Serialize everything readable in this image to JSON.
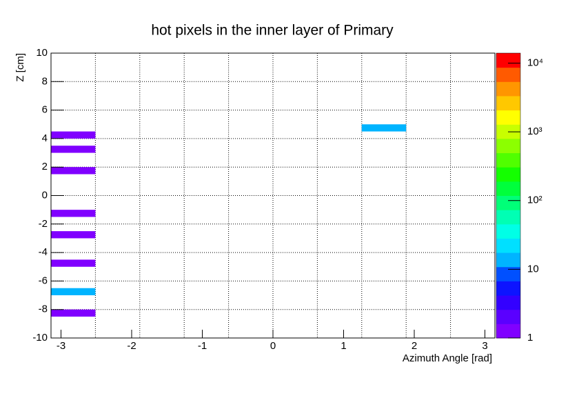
{
  "chart_data": {
    "type": "heatmap",
    "title": "hot pixels in the inner layer of Primary",
    "x_label": "Azimuth Angle [rad]",
    "y_label": "Z [cm]",
    "xlim": [
      -3.1416,
      3.1416
    ],
    "ylim": [
      -10,
      10
    ],
    "xticks": [
      -3,
      -2,
      -1,
      0,
      1,
      2,
      3
    ],
    "yticks": [
      -10,
      -8,
      -6,
      -4,
      -2,
      0,
      2,
      4,
      6,
      8,
      10
    ],
    "xgrid": [
      -2.5133,
      -1.885,
      -1.2566,
      -0.6283,
      0,
      0.6283,
      1.2566,
      1.885,
      2.5133
    ],
    "grid": true,
    "zlim": [
      1,
      14000
    ],
    "zlog": true,
    "zticks": [
      1,
      10,
      {
        "value": 100,
        "label": "10²"
      },
      {
        "value": 1000,
        "label": "10³"
      },
      {
        "value": 10000,
        "label": "10⁴"
      }
    ],
    "palette": [
      "#8000ff",
      "#5a00ff",
      "#3300ff",
      "#0d14ff",
      "#0050ff",
      "#00b4ff",
      "#00e0ff",
      "#00ffe6",
      "#00ffb4",
      "#00ff78",
      "#00ff3c",
      "#14ff00",
      "#50ff00",
      "#8cff00",
      "#c8ff00",
      "#ffff00",
      "#ffc800",
      "#ff9600",
      "#ff5a00",
      "#ff0000"
    ],
    "cells": [
      {
        "x": [
          -3.1416,
          -2.5133
        ],
        "y": [
          4,
          4.5
        ],
        "value": 1
      },
      {
        "x": [
          -3.1416,
          -2.5133
        ],
        "y": [
          3,
          3.5
        ],
        "value": 1
      },
      {
        "x": [
          -3.1416,
          -2.5133
        ],
        "y": [
          1.5,
          2
        ],
        "value": 1
      },
      {
        "x": [
          -3.1416,
          -2.5133
        ],
        "y": [
          -1.5,
          -1
        ],
        "value": 1
      },
      {
        "x": [
          -3.1416,
          -2.5133
        ],
        "y": [
          -3,
          -2.5
        ],
        "value": 1
      },
      {
        "x": [
          -3.1416,
          -2.5133
        ],
        "y": [
          -5,
          -4.5
        ],
        "value": 1
      },
      {
        "x": [
          -3.1416,
          -2.5133
        ],
        "y": [
          -7,
          -6.5
        ],
        "value": 12
      },
      {
        "x": [
          -3.1416,
          -2.5133
        ],
        "y": [
          -8.5,
          -8
        ],
        "value": 1
      },
      {
        "x": [
          1.2566,
          1.885
        ],
        "y": [
          4.5,
          5
        ],
        "value": 12
      }
    ]
  }
}
